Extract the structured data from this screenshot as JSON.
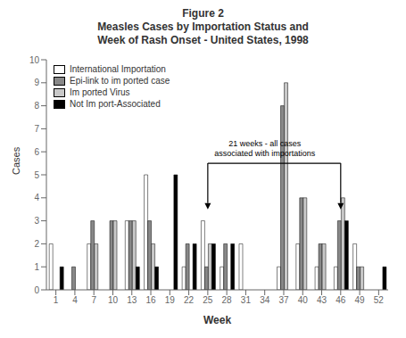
{
  "chart_data": {
    "type": "bar",
    "title": "Figure 2\nMeasles Cases by Importation Status and\nWeek of Rash Onset - United States, 1998",
    "x_label": "Week",
    "y_label": "Cases",
    "categories": [
      "1",
      "4",
      "7",
      "10",
      "13",
      "16",
      "19",
      "22",
      "25",
      "28",
      "31",
      "34",
      "37",
      "40",
      "43",
      "46",
      "49",
      "52"
    ],
    "series": [
      {
        "name": "International Importation",
        "color": "#ffffff",
        "values": [
          2,
          0,
          2,
          0,
          3,
          5,
          0,
          1,
          3,
          1,
          2,
          0,
          1,
          2,
          1,
          1,
          2,
          0
        ]
      },
      {
        "name": "Epi-link to im ported case",
        "color": "#888888",
        "values": [
          0,
          1,
          3,
          3,
          3,
          3,
          0,
          2,
          1,
          2,
          0,
          0,
          8,
          4,
          2,
          3,
          1,
          0
        ]
      },
      {
        "name": "Im ported Virus",
        "color": "#c8c8c8",
        "values": [
          0,
          0,
          2,
          3,
          3,
          2,
          0,
          0,
          2,
          0,
          0,
          0,
          9,
          4,
          2,
          4,
          1,
          0
        ]
      },
      {
        "name": "Not Im port-Associated",
        "color": "#000000",
        "values": [
          1,
          0,
          0,
          0,
          1,
          1,
          5,
          2,
          2,
          2,
          0,
          0,
          0,
          0,
          0,
          3,
          0,
          1
        ]
      }
    ],
    "ylim": [
      0,
      10
    ],
    "yticks": [
      0,
      1,
      2,
      3,
      4,
      5,
      6,
      7,
      8,
      9,
      10
    ],
    "grid": false,
    "legend": "upper left",
    "annotations": [
      {
        "text": "21 weeks - all cases\nassociated with importations",
        "x": "25",
        "x_end": "46",
        "y": 5.5,
        "y_end": 3.5
      }
    ]
  }
}
